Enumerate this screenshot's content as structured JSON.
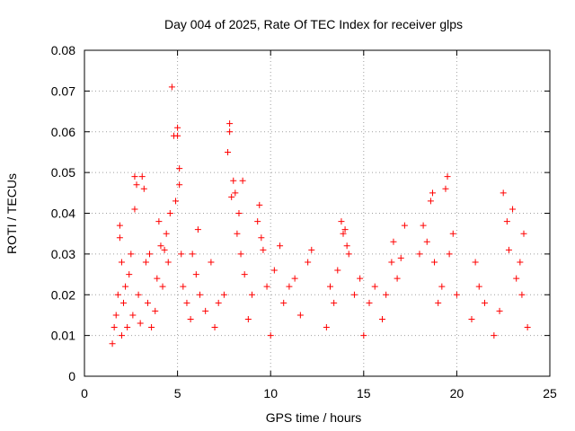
{
  "chart_data": {
    "type": "scatter",
    "title": "Day 004 of 2025, Rate Of TEC Index for receiver glps",
    "xlabel": "GPS time / hours",
    "ylabel": "ROTI / TECUs",
    "xlim": [
      0,
      25
    ],
    "ylim": [
      0,
      0.08
    ],
    "x_ticks": [
      "0",
      "5",
      "10",
      "15",
      "20",
      "25"
    ],
    "y_ticks": [
      "0",
      "0.01",
      "0.02",
      "0.03",
      "0.04",
      "0.05",
      "0.06",
      "0.07",
      "0.08"
    ],
    "grid": true,
    "marker": "+",
    "color": "#ff0000",
    "series": [
      {
        "points": [
          [
            1.5,
            0.008
          ],
          [
            1.6,
            0.012
          ],
          [
            1.7,
            0.015
          ],
          [
            1.8,
            0.02
          ],
          [
            1.9,
            0.034
          ],
          [
            1.9,
            0.037
          ],
          [
            2.0,
            0.028
          ],
          [
            2.0,
            0.01
          ],
          [
            2.1,
            0.018
          ],
          [
            2.2,
            0.022
          ],
          [
            2.3,
            0.012
          ],
          [
            2.4,
            0.025
          ],
          [
            2.5,
            0.03
          ],
          [
            2.6,
            0.015
          ],
          [
            2.7,
            0.041
          ],
          [
            2.7,
            0.049
          ],
          [
            2.8,
            0.047
          ],
          [
            2.9,
            0.02
          ],
          [
            3.0,
            0.013
          ],
          [
            3.1,
            0.049
          ],
          [
            3.2,
            0.046
          ],
          [
            3.3,
            0.028
          ],
          [
            3.4,
            0.018
          ],
          [
            3.5,
            0.03
          ],
          [
            3.6,
            0.012
          ],
          [
            3.8,
            0.016
          ],
          [
            3.9,
            0.024
          ],
          [
            4.0,
            0.038
          ],
          [
            4.1,
            0.032
          ],
          [
            4.2,
            0.022
          ],
          [
            4.3,
            0.031
          ],
          [
            4.4,
            0.035
          ],
          [
            4.5,
            0.028
          ],
          [
            4.6,
            0.04
          ],
          [
            4.7,
            0.071
          ],
          [
            4.8,
            0.059
          ],
          [
            4.9,
            0.043
          ],
          [
            5.0,
            0.059
          ],
          [
            5.0,
            0.061
          ],
          [
            5.1,
            0.051
          ],
          [
            5.1,
            0.047
          ],
          [
            5.2,
            0.03
          ],
          [
            5.3,
            0.022
          ],
          [
            5.5,
            0.018
          ],
          [
            5.7,
            0.014
          ],
          [
            5.8,
            0.03
          ],
          [
            6.0,
            0.025
          ],
          [
            6.1,
            0.036
          ],
          [
            6.2,
            0.02
          ],
          [
            6.5,
            0.016
          ],
          [
            6.8,
            0.028
          ],
          [
            7.0,
            0.012
          ],
          [
            7.2,
            0.018
          ],
          [
            7.5,
            0.02
          ],
          [
            7.7,
            0.055
          ],
          [
            7.8,
            0.062
          ],
          [
            7.8,
            0.06
          ],
          [
            7.9,
            0.044
          ],
          [
            8.0,
            0.048
          ],
          [
            8.1,
            0.045
          ],
          [
            8.2,
            0.035
          ],
          [
            8.3,
            0.04
          ],
          [
            8.4,
            0.03
          ],
          [
            8.5,
            0.048
          ],
          [
            8.6,
            0.025
          ],
          [
            8.8,
            0.014
          ],
          [
            9.0,
            0.02
          ],
          [
            9.3,
            0.038
          ],
          [
            9.4,
            0.042
          ],
          [
            9.5,
            0.034
          ],
          [
            9.6,
            0.031
          ],
          [
            9.8,
            0.022
          ],
          [
            10.0,
            0.01
          ],
          [
            10.2,
            0.026
          ],
          [
            10.5,
            0.032
          ],
          [
            10.7,
            0.018
          ],
          [
            11.0,
            0.022
          ],
          [
            11.3,
            0.024
          ],
          [
            11.6,
            0.015
          ],
          [
            12.0,
            0.028
          ],
          [
            12.2,
            0.031
          ],
          [
            13.0,
            0.012
          ],
          [
            13.2,
            0.022
          ],
          [
            13.4,
            0.018
          ],
          [
            13.6,
            0.026
          ],
          [
            13.8,
            0.038
          ],
          [
            13.9,
            0.035
          ],
          [
            14.0,
            0.036
          ],
          [
            14.1,
            0.032
          ],
          [
            14.2,
            0.03
          ],
          [
            14.5,
            0.02
          ],
          [
            14.8,
            0.024
          ],
          [
            15.0,
            0.01
          ],
          [
            15.3,
            0.018
          ],
          [
            15.6,
            0.022
          ],
          [
            16.0,
            0.014
          ],
          [
            16.2,
            0.02
          ],
          [
            16.5,
            0.028
          ],
          [
            16.6,
            0.033
          ],
          [
            16.8,
            0.024
          ],
          [
            17.0,
            0.029
          ],
          [
            17.2,
            0.037
          ],
          [
            18.0,
            0.03
          ],
          [
            18.2,
            0.037
          ],
          [
            18.4,
            0.033
          ],
          [
            18.6,
            0.043
          ],
          [
            18.7,
            0.045
          ],
          [
            18.8,
            0.028
          ],
          [
            19.0,
            0.018
          ],
          [
            19.2,
            0.022
          ],
          [
            19.4,
            0.046
          ],
          [
            19.5,
            0.049
          ],
          [
            19.6,
            0.03
          ],
          [
            19.8,
            0.035
          ],
          [
            20.0,
            0.02
          ],
          [
            20.8,
            0.014
          ],
          [
            21.0,
            0.028
          ],
          [
            21.2,
            0.022
          ],
          [
            21.5,
            0.018
          ],
          [
            22.0,
            0.01
          ],
          [
            22.3,
            0.016
          ],
          [
            22.5,
            0.045
          ],
          [
            22.7,
            0.038
          ],
          [
            22.8,
            0.031
          ],
          [
            23.0,
            0.041
          ],
          [
            23.2,
            0.024
          ],
          [
            23.4,
            0.028
          ],
          [
            23.5,
            0.02
          ],
          [
            23.6,
            0.035
          ],
          [
            23.8,
            0.012
          ]
        ]
      }
    ]
  }
}
